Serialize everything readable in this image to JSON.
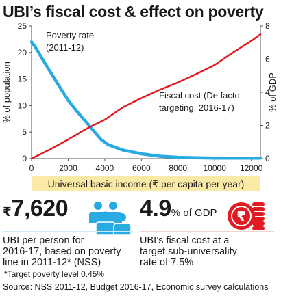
{
  "title": "UBI’s fiscal cost & effect on poverty",
  "colors": {
    "poverty": "#29abe2",
    "fiscal": "#e11b22",
    "band": "#fbe9a6",
    "divider_left": "#cfe8f5",
    "divider_right": "#f6d0cc"
  },
  "chart_data": {
    "type": "line",
    "xlabel": "Universal basic income (₹ per capita per year)",
    "ylabel_left": "% of population",
    "ylabel_right": "% of GDP",
    "xlim": [
      0,
      12500
    ],
    "ylim_left": [
      0,
      25
    ],
    "ylim_right": [
      0,
      8
    ],
    "x_ticks": [
      "0",
      "2000",
      "4000",
      "6000",
      "8000",
      "10000",
      "12000"
    ],
    "y_left_ticks": [
      "0",
      "5",
      "10",
      "15",
      "20",
      "25"
    ],
    "y_right_ticks": [
      "0",
      "2",
      "4",
      "6",
      "8"
    ],
    "grid": false,
    "series": [
      {
        "name": "Poverty rate (2011-12)",
        "axis": "left",
        "x": [
          0,
          250,
          500,
          1000,
          1500,
          2000,
          2500,
          3000,
          3500,
          3800,
          4200,
          5000,
          6000,
          7000,
          8000,
          9000,
          10000,
          11000,
          12000,
          12500
        ],
        "y": [
          22.0,
          20.8,
          19.3,
          16.5,
          13.7,
          11.0,
          8.8,
          6.8,
          4.8,
          3.6,
          2.6,
          1.6,
          0.9,
          0.45,
          0.25,
          0.15,
          0.1,
          0.1,
          0.1,
          0.1
        ]
      },
      {
        "name": "Fiscal cost (De facto targeting, 2016-17)",
        "axis": "right",
        "x": [
          0,
          1000,
          2000,
          3000,
          4000,
          5000,
          6000,
          7000,
          8000,
          9000,
          10000,
          11000,
          12000,
          12500
        ],
        "y": [
          0,
          0.55,
          1.15,
          1.8,
          2.35,
          3.1,
          3.65,
          4.15,
          4.6,
          5.1,
          5.65,
          6.4,
          7.1,
          7.5
        ]
      }
    ]
  },
  "kpis": {
    "left": {
      "currency": "₹",
      "value": "7,620",
      "description": "UBI per person for 2016-17, based on poverty line in 2011-12* (NSS)",
      "description_lines": [
        "UBI per person for",
        "2016-17, based on poverty",
        "line in 2011-12* (NSS)"
      ],
      "note": "*Target poverty level 0.45%",
      "icon": "people-group-icon"
    },
    "right": {
      "value": "4.9",
      "unit": "% of GDP",
      "description": "UBI’s fiscal cost at a target sub-universality rate of 7.5%",
      "description_lines": [
        "UBI’s fiscal cost at a",
        "target sub-universality",
        "rate of 7.5%"
      ],
      "icon": "rupee-coin-stack-icon"
    }
  },
  "source": "Source: NSS 2011-12, Budget 2016-17, Economic survey calculations"
}
